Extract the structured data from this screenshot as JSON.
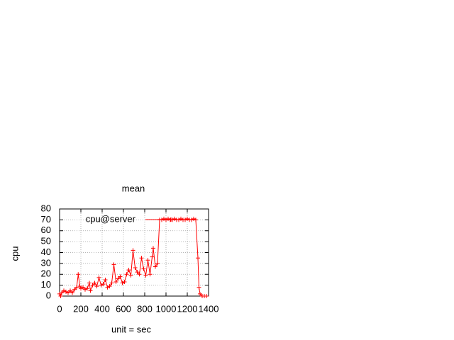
{
  "chart_data": {
    "type": "line",
    "title": "mean",
    "x_label": "unit = sec",
    "y_label": "cpu",
    "x": [
      0,
      10,
      20,
      40,
      60,
      80,
      100,
      120,
      140,
      160,
      175,
      190,
      200,
      220,
      240,
      260,
      280,
      290,
      310,
      330,
      350,
      370,
      390,
      410,
      430,
      450,
      470,
      490,
      510,
      530,
      550,
      570,
      590,
      610,
      630,
      650,
      670,
      690,
      710,
      730,
      750,
      770,
      790,
      810,
      830,
      850,
      870,
      880,
      900,
      920,
      940,
      960,
      980,
      1000,
      1020,
      1040,
      1060,
      1080,
      1100,
      1120,
      1140,
      1160,
      1180,
      1200,
      1220,
      1240,
      1260,
      1280,
      1300,
      1310,
      1320,
      1340,
      1360,
      1380
    ],
    "series": [
      {
        "name": "cpu@server",
        "color": "#ff0000",
        "values": [
          2,
          0,
          3,
          5,
          4,
          3,
          5,
          3,
          6,
          8,
          20,
          9,
          7,
          8,
          6,
          7,
          12,
          5,
          10,
          12,
          9,
          17,
          10,
          11,
          15,
          8,
          9,
          12,
          29,
          13,
          16,
          18,
          12,
          13,
          20,
          24,
          19,
          42,
          26,
          22,
          20,
          35,
          25,
          19,
          33,
          20,
          36,
          44,
          27,
          30,
          70,
          70,
          71,
          70,
          71,
          70,
          70,
          71,
          70,
          70,
          71,
          70,
          70,
          71,
          70,
          70,
          71,
          70,
          35,
          8,
          2,
          0,
          0,
          0
        ]
      }
    ],
    "xlim": [
      0,
      1400
    ],
    "ylim": [
      0,
      80
    ],
    "xticks": [
      0,
      200,
      400,
      600,
      800,
      1000,
      1200,
      1400
    ],
    "yticks": [
      0,
      10,
      20,
      30,
      40,
      50,
      60,
      70,
      80
    ],
    "grid": true,
    "legend": "top-right"
  }
}
